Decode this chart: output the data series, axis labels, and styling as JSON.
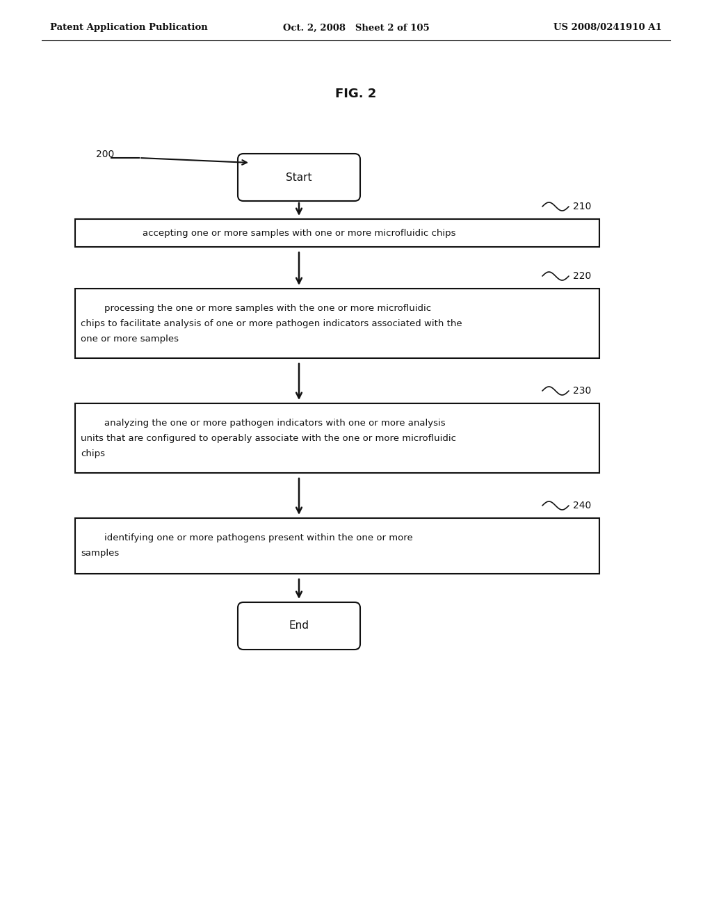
{
  "header_left": "Patent Application Publication",
  "header_center": "Oct. 2, 2008   Sheet 2 of 105",
  "header_right": "US 2008/0241910 A1",
  "fig_title": "FIG. 2",
  "label_200": "200",
  "start_text": "Start",
  "end_text": "End",
  "boxes": [
    {
      "id": "210",
      "label": "210",
      "line1": "accepting one or more samples with one or more microfluidic chips"
    },
    {
      "id": "220",
      "label": "220",
      "line1": "        processing the one or more samples with the one or more microfluidic",
      "line2": "chips to facilitate analysis of one or more pathogen indicators associated with the",
      "line3": "one or more samples"
    },
    {
      "id": "230",
      "label": "230",
      "line1": "        analyzing the one or more pathogen indicators with one or more analysis",
      "line2": "units that are configured to operably associate with the one or more microfluidic",
      "line3": "chips"
    },
    {
      "id": "240",
      "label": "240",
      "line1": "        identifying one or more pathogens present within the one or more",
      "line2": "samples"
    }
  ],
  "background_color": "#ffffff",
  "text_color": "#111111",
  "box_edge_color": "#111111",
  "line_color": "#111111",
  "header_fontsize": 9.5,
  "fig_title_fontsize": 13,
  "body_fontsize": 9.5,
  "label_fontsize": 10
}
